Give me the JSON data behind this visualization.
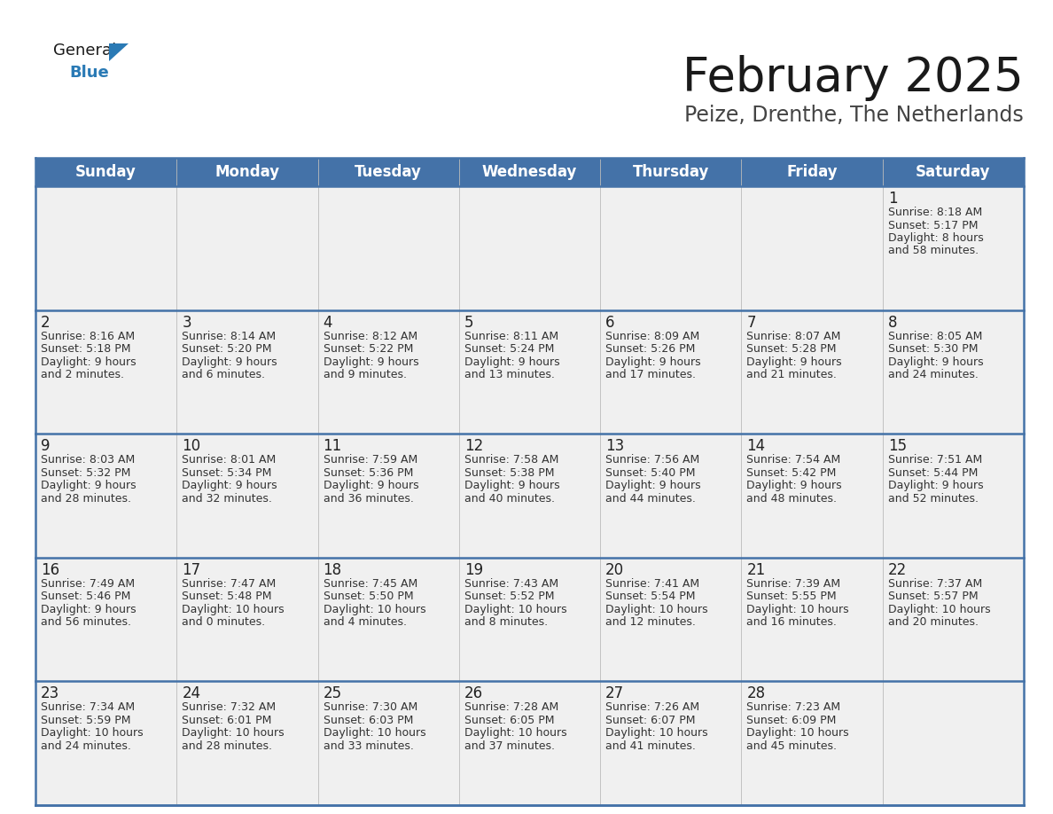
{
  "title": "February 2025",
  "subtitle": "Peize, Drenthe, The Netherlands",
  "header_bg": "#4472a8",
  "header_fg": "#ffffff",
  "cell_bg": "#f0f0f0",
  "border_color": "#4472a8",
  "day_color": "#222222",
  "info_color": "#333333",
  "days_of_week": [
    "Sunday",
    "Monday",
    "Tuesday",
    "Wednesday",
    "Thursday",
    "Friday",
    "Saturday"
  ],
  "calendar_data": [
    [
      null,
      null,
      null,
      null,
      null,
      null,
      {
        "day": "1",
        "sunrise": "8:18 AM",
        "sunset": "5:17 PM",
        "daylight1": "Daylight: 8 hours",
        "daylight2": "and 58 minutes."
      }
    ],
    [
      {
        "day": "2",
        "sunrise": "8:16 AM",
        "sunset": "5:18 PM",
        "daylight1": "Daylight: 9 hours",
        "daylight2": "and 2 minutes."
      },
      {
        "day": "3",
        "sunrise": "8:14 AM",
        "sunset": "5:20 PM",
        "daylight1": "Daylight: 9 hours",
        "daylight2": "and 6 minutes."
      },
      {
        "day": "4",
        "sunrise": "8:12 AM",
        "sunset": "5:22 PM",
        "daylight1": "Daylight: 9 hours",
        "daylight2": "and 9 minutes."
      },
      {
        "day": "5",
        "sunrise": "8:11 AM",
        "sunset": "5:24 PM",
        "daylight1": "Daylight: 9 hours",
        "daylight2": "and 13 minutes."
      },
      {
        "day": "6",
        "sunrise": "8:09 AM",
        "sunset": "5:26 PM",
        "daylight1": "Daylight: 9 hours",
        "daylight2": "and 17 minutes."
      },
      {
        "day": "7",
        "sunrise": "8:07 AM",
        "sunset": "5:28 PM",
        "daylight1": "Daylight: 9 hours",
        "daylight2": "and 21 minutes."
      },
      {
        "day": "8",
        "sunrise": "8:05 AM",
        "sunset": "5:30 PM",
        "daylight1": "Daylight: 9 hours",
        "daylight2": "and 24 minutes."
      }
    ],
    [
      {
        "day": "9",
        "sunrise": "8:03 AM",
        "sunset": "5:32 PM",
        "daylight1": "Daylight: 9 hours",
        "daylight2": "and 28 minutes."
      },
      {
        "day": "10",
        "sunrise": "8:01 AM",
        "sunset": "5:34 PM",
        "daylight1": "Daylight: 9 hours",
        "daylight2": "and 32 minutes."
      },
      {
        "day": "11",
        "sunrise": "7:59 AM",
        "sunset": "5:36 PM",
        "daylight1": "Daylight: 9 hours",
        "daylight2": "and 36 minutes."
      },
      {
        "day": "12",
        "sunrise": "7:58 AM",
        "sunset": "5:38 PM",
        "daylight1": "Daylight: 9 hours",
        "daylight2": "and 40 minutes."
      },
      {
        "day": "13",
        "sunrise": "7:56 AM",
        "sunset": "5:40 PM",
        "daylight1": "Daylight: 9 hours",
        "daylight2": "and 44 minutes."
      },
      {
        "day": "14",
        "sunrise": "7:54 AM",
        "sunset": "5:42 PM",
        "daylight1": "Daylight: 9 hours",
        "daylight2": "and 48 minutes."
      },
      {
        "day": "15",
        "sunrise": "7:51 AM",
        "sunset": "5:44 PM",
        "daylight1": "Daylight: 9 hours",
        "daylight2": "and 52 minutes."
      }
    ],
    [
      {
        "day": "16",
        "sunrise": "7:49 AM",
        "sunset": "5:46 PM",
        "daylight1": "Daylight: 9 hours",
        "daylight2": "and 56 minutes."
      },
      {
        "day": "17",
        "sunrise": "7:47 AM",
        "sunset": "5:48 PM",
        "daylight1": "Daylight: 10 hours",
        "daylight2": "and 0 minutes."
      },
      {
        "day": "18",
        "sunrise": "7:45 AM",
        "sunset": "5:50 PM",
        "daylight1": "Daylight: 10 hours",
        "daylight2": "and 4 minutes."
      },
      {
        "day": "19",
        "sunrise": "7:43 AM",
        "sunset": "5:52 PM",
        "daylight1": "Daylight: 10 hours",
        "daylight2": "and 8 minutes."
      },
      {
        "day": "20",
        "sunrise": "7:41 AM",
        "sunset": "5:54 PM",
        "daylight1": "Daylight: 10 hours",
        "daylight2": "and 12 minutes."
      },
      {
        "day": "21",
        "sunrise": "7:39 AM",
        "sunset": "5:55 PM",
        "daylight1": "Daylight: 10 hours",
        "daylight2": "and 16 minutes."
      },
      {
        "day": "22",
        "sunrise": "7:37 AM",
        "sunset": "5:57 PM",
        "daylight1": "Daylight: 10 hours",
        "daylight2": "and 20 minutes."
      }
    ],
    [
      {
        "day": "23",
        "sunrise": "7:34 AM",
        "sunset": "5:59 PM",
        "daylight1": "Daylight: 10 hours",
        "daylight2": "and 24 minutes."
      },
      {
        "day": "24",
        "sunrise": "7:32 AM",
        "sunset": "6:01 PM",
        "daylight1": "Daylight: 10 hours",
        "daylight2": "and 28 minutes."
      },
      {
        "day": "25",
        "sunrise": "7:30 AM",
        "sunset": "6:03 PM",
        "daylight1": "Daylight: 10 hours",
        "daylight2": "and 33 minutes."
      },
      {
        "day": "26",
        "sunrise": "7:28 AM",
        "sunset": "6:05 PM",
        "daylight1": "Daylight: 10 hours",
        "daylight2": "and 37 minutes."
      },
      {
        "day": "27",
        "sunrise": "7:26 AM",
        "sunset": "6:07 PM",
        "daylight1": "Daylight: 10 hours",
        "daylight2": "and 41 minutes."
      },
      {
        "day": "28",
        "sunrise": "7:23 AM",
        "sunset": "6:09 PM",
        "daylight1": "Daylight: 10 hours",
        "daylight2": "and 45 minutes."
      },
      null
    ]
  ],
  "title_fontsize": 38,
  "subtitle_fontsize": 17,
  "header_fontsize": 12,
  "day_fontsize": 12,
  "info_fontsize": 9,
  "logo_general_size": 13,
  "logo_blue_size": 13
}
